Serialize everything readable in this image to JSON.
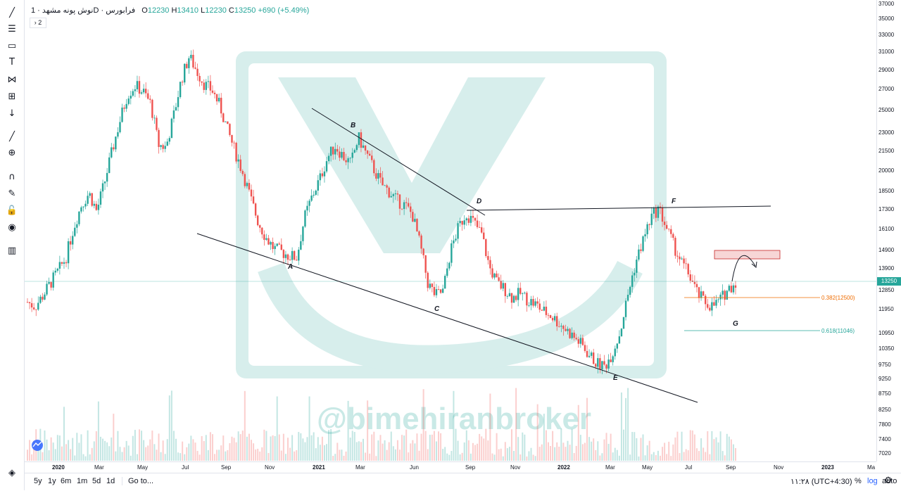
{
  "legend": {
    "symbol": "نوش پونه مشهد",
    "interval": "1D",
    "exchange": "فرابورس",
    "open_label": "O",
    "open": "12230",
    "high_label": "H",
    "high": "13410",
    "low_label": "L",
    "low": "12230",
    "close_label": "C",
    "close": "13250",
    "change": "+690 (+5.49%)",
    "collapsed_count": "2"
  },
  "watermark": "@bimehiranbroker",
  "bottom_bar": {
    "ranges": [
      "5y",
      "1y",
      "6m",
      "1m",
      "5d",
      "1d"
    ],
    "goto": "Go to...",
    "clock": "۱۱:۲۸ (UTC+4:30)",
    "percent": "%",
    "log": "log",
    "auto": "auto"
  },
  "tools": [
    "cursor-icon",
    "trend-line-icon",
    "fib-icon",
    "rectangle-icon",
    "text-icon",
    "pattern-icon",
    "measure-icon",
    "arrow-down-icon",
    "ruler-icon",
    "zoom-icon",
    "magnet-icon",
    "lock-draw-icon",
    "lock-icon",
    "eye-icon",
    "trash-icon",
    "layers-icon"
  ],
  "colors": {
    "up": "#26a69a",
    "down": "#ef5350",
    "fib382": "#ef6c00",
    "fib618": "#26a69a",
    "line": "#131722",
    "zone": "#f3c5c5"
  },
  "chart_data": {
    "type": "candlestick",
    "symbol": "نوش پونه مشهد",
    "price_ticks": [
      37000,
      35000,
      33000,
      31000,
      29000,
      27000,
      25000,
      23000,
      21500,
      20000,
      18500,
      17300,
      16100,
      14900,
      13900,
      12850,
      11950,
      10950,
      10350,
      9750,
      9250,
      8750,
      8250,
      7800,
      7400,
      7020
    ],
    "price_tick_labels": [
      "37000",
      "35000",
      "33000",
      "31000",
      "29000",
      "27000",
      "25000",
      "23000",
      "21500",
      "20000",
      "18500",
      "17300",
      "16100",
      "14900",
      "13900",
      "12850",
      "11950",
      "10950",
      "10350",
      "9750",
      "9250",
      "8750",
      "8250",
      "7800",
      "7400",
      "7020"
    ],
    "last_price": "13250",
    "time_labels": [
      "2020",
      "Mar",
      "May",
      "Jul",
      "Sep",
      "Nov",
      "2021",
      "Mar",
      "Jun",
      "Sep",
      "Nov",
      "2022",
      "Mar",
      "May",
      "Jul",
      "Sep",
      "Nov",
      "2023",
      "Ma"
    ],
    "swing_points": [
      {
        "label": "A",
        "price": 14500
      },
      {
        "label": "B",
        "price": 22800
      },
      {
        "label": "C",
        "price": 12400
      },
      {
        "label": "D",
        "price": 17300
      },
      {
        "label": "E",
        "price": 9650
      },
      {
        "label": "F",
        "price": 17400
      },
      {
        "label": "G",
        "price": 12000
      }
    ],
    "fib_levels": [
      {
        "label": "0.382(12500)",
        "ratio": 0.382,
        "price": 12500
      },
      {
        "label": "0.618(11046)",
        "ratio": 0.618,
        "price": 11046
      }
    ],
    "resistance_zone": [
      14500,
      14900
    ],
    "close_series": [
      12300,
      12100,
      12600,
      13200,
      13800,
      14500,
      16200,
      17600,
      18400,
      17200,
      19100,
      21500,
      24000,
      26500,
      27400,
      26800,
      25600,
      22000,
      21800,
      24500,
      28000,
      30500,
      28900,
      27500,
      26900,
      25400,
      23200,
      21400,
      19800,
      18000,
      16500,
      15600,
      15000,
      14800,
      14600,
      14500,
      16800,
      18200,
      19400,
      21000,
      21900,
      21100,
      20500,
      22600,
      21300,
      20100,
      19000,
      18500,
      17900,
      17600,
      17000,
      15200,
      13200,
      12600,
      12800,
      14900,
      16200,
      17100,
      16500,
      15800,
      14000,
      13200,
      12900,
      12500,
      12700,
      12400,
      12200,
      11900,
      11700,
      11400,
      11100,
      10800,
      10500,
      10100,
      9800,
      9700,
      10200,
      11000,
      12600,
      14200,
      15500,
      16800,
      17400,
      16200,
      15100,
      14200,
      13600,
      12700,
      12300,
      12100,
      12400,
      12900,
      13250
    ]
  }
}
